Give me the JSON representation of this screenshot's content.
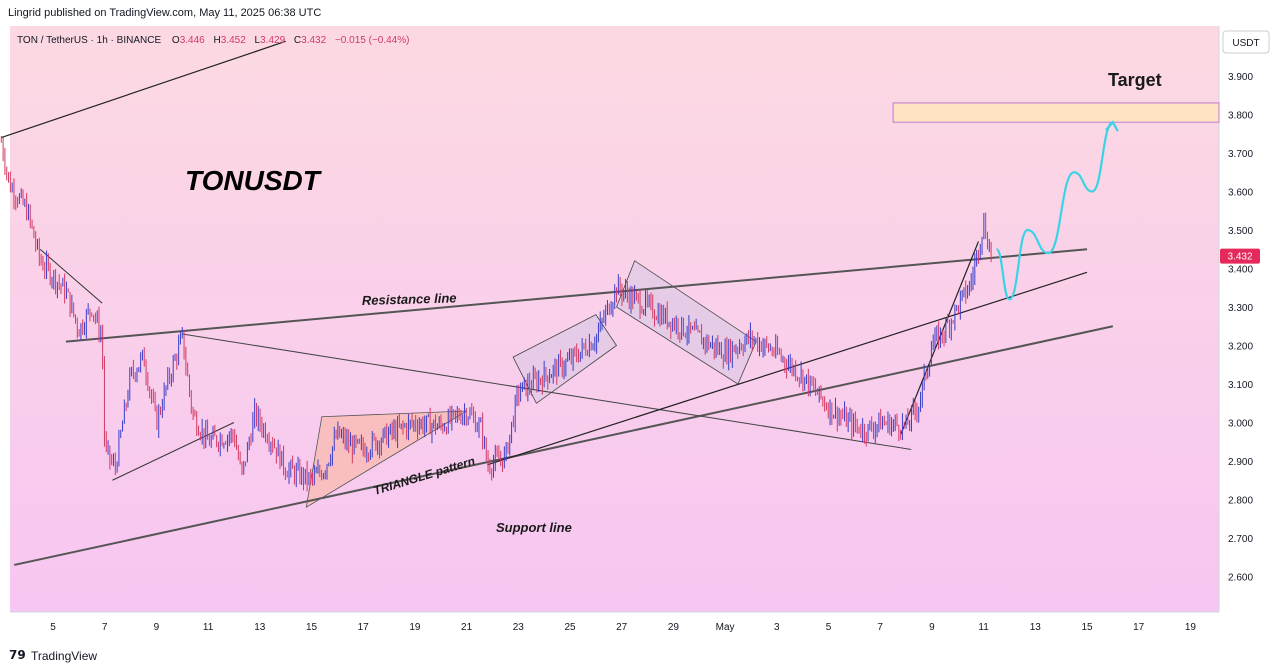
{
  "publisher": "Lingrid published on TradingView.com, May 11, 2025 06:38 UTC",
  "footer": {
    "logo_icon": "tradingview-logo-icon",
    "brand": "TradingView"
  },
  "symbol_legend": {
    "symbol": "TON / TetherUS · 1h · BINANCE",
    "o_label": "O",
    "o_value": "3.446",
    "h_label": "H",
    "h_value": "3.452",
    "l_label": "L",
    "l_value": "3.429",
    "c_label": "C",
    "c_value": "3.432",
    "change": "−0.015 (−0.44%)"
  },
  "currency_label": "USDT",
  "last_price_label": "3.432",
  "colors": {
    "background_top": "#fcd9e2",
    "background_bottom": "#f7c6f2",
    "candle_up": "#3b3fc8",
    "candle_down": "#d23a63",
    "triangle_fill": "#f9b9a8",
    "channel_fill": "#d8c8e4",
    "target_fill": "#ffe3c4",
    "target_stroke": "#c07ad0",
    "projection": "#3ad3e6",
    "price_tag": "#e5295b"
  },
  "annotations": {
    "title": "TONUSDT",
    "resistance": "Resistance line",
    "support": "Support line",
    "triangle": "TRIANGLE pattern",
    "target": "Target"
  },
  "chart_data": {
    "type": "candlestick",
    "series_name": "TON / TetherUS",
    "timeframe": "1h",
    "ylim": [
      2.5,
      4.0
    ],
    "y_ticks": [
      "3.900",
      "3.800",
      "3.700",
      "3.600",
      "3.500",
      "3.400",
      "3.300",
      "3.200",
      "3.100",
      "3.000",
      "2.900",
      "2.800",
      "2.700",
      "2.600"
    ],
    "x_ticks": [
      "5",
      "7",
      "9",
      "11",
      "13",
      "15",
      "17",
      "19",
      "21",
      "23",
      "25",
      "27",
      "29",
      "May",
      "3",
      "5",
      "7",
      "9",
      "11",
      "13",
      "15",
      "17",
      "19"
    ],
    "x_tick_days": [
      5,
      7,
      9,
      11,
      13,
      15,
      17,
      19,
      21,
      23,
      25,
      27,
      29,
      31,
      33,
      35,
      37,
      39,
      41,
      43,
      45,
      47,
      49
    ],
    "xlim_days": [
      3.0,
      50.0
    ],
    "last_price": 3.432,
    "price_path": [
      [
        3.0,
        3.73
      ],
      [
        3.3,
        3.62
      ],
      [
        4.0,
        3.55
      ],
      [
        4.5,
        3.42
      ],
      [
        5.5,
        3.34
      ],
      [
        6.0,
        3.24
      ],
      [
        6.5,
        3.3
      ],
      [
        6.9,
        3.22
      ],
      [
        7.0,
        2.93
      ],
      [
        7.4,
        2.88
      ],
      [
        8.0,
        3.12
      ],
      [
        8.5,
        3.17
      ],
      [
        9.0,
        3.0
      ],
      [
        9.5,
        3.12
      ],
      [
        10.0,
        3.22
      ],
      [
        10.4,
        3.02
      ],
      [
        11.0,
        2.95
      ],
      [
        12.0,
        2.97
      ],
      [
        12.3,
        2.86
      ],
      [
        12.8,
        3.02
      ],
      [
        13.5,
        2.95
      ],
      [
        14.0,
        2.88
      ],
      [
        15.0,
        2.85
      ],
      [
        15.5,
        2.88
      ],
      [
        16.0,
        2.97
      ],
      [
        16.5,
        2.94
      ],
      [
        17.0,
        2.93
      ],
      [
        18.0,
        2.97
      ],
      [
        19.0,
        3.0
      ],
      [
        20.0,
        2.99
      ],
      [
        21.0,
        3.03
      ],
      [
        21.6,
        2.98
      ],
      [
        21.8,
        2.89
      ],
      [
        22.5,
        2.91
      ],
      [
        23.0,
        3.08
      ],
      [
        24.0,
        3.12
      ],
      [
        25.0,
        3.16
      ],
      [
        26.0,
        3.22
      ],
      [
        26.8,
        3.35
      ],
      [
        27.5,
        3.32
      ],
      [
        28.0,
        3.3
      ],
      [
        29.0,
        3.26
      ],
      [
        30.0,
        3.22
      ],
      [
        31.0,
        3.18
      ],
      [
        32.0,
        3.22
      ],
      [
        33.0,
        3.18
      ],
      [
        34.0,
        3.12
      ],
      [
        35.0,
        3.04
      ],
      [
        36.0,
        2.99
      ],
      [
        36.5,
        2.98
      ],
      [
        37.0,
        3.0
      ],
      [
        38.0,
        2.99
      ],
      [
        38.5,
        3.05
      ],
      [
        39.0,
        3.2
      ],
      [
        39.5,
        3.24
      ],
      [
        40.0,
        3.3
      ],
      [
        40.5,
        3.36
      ],
      [
        41.0,
        3.52
      ],
      [
        41.3,
        3.432
      ]
    ],
    "trendlines": {
      "resistance": [
        [
          5.5,
          3.21
        ],
        [
          45.0,
          3.45
        ]
      ],
      "support": [
        [
          3.5,
          2.63
        ],
        [
          46.0,
          3.25
        ]
      ],
      "upper_trend": [
        [
          3.0,
          3.74
        ],
        [
          14.0,
          3.99
        ]
      ],
      "mid_diagonal": [
        [
          10.0,
          3.23
        ],
        [
          38.2,
          2.93
        ]
      ],
      "rising_channel": [
        [
          21.8,
          2.89
        ],
        [
          45.0,
          3.39
        ]
      ]
    },
    "target_zone": [
      3.78,
      3.83
    ],
    "projection_path": [
      [
        41.5,
        3.45
      ],
      [
        42.0,
        3.32
      ],
      [
        42.7,
        3.5
      ],
      [
        43.5,
        3.44
      ],
      [
        44.5,
        3.65
      ],
      [
        45.2,
        3.6
      ],
      [
        46.0,
        3.78
      ]
    ]
  }
}
